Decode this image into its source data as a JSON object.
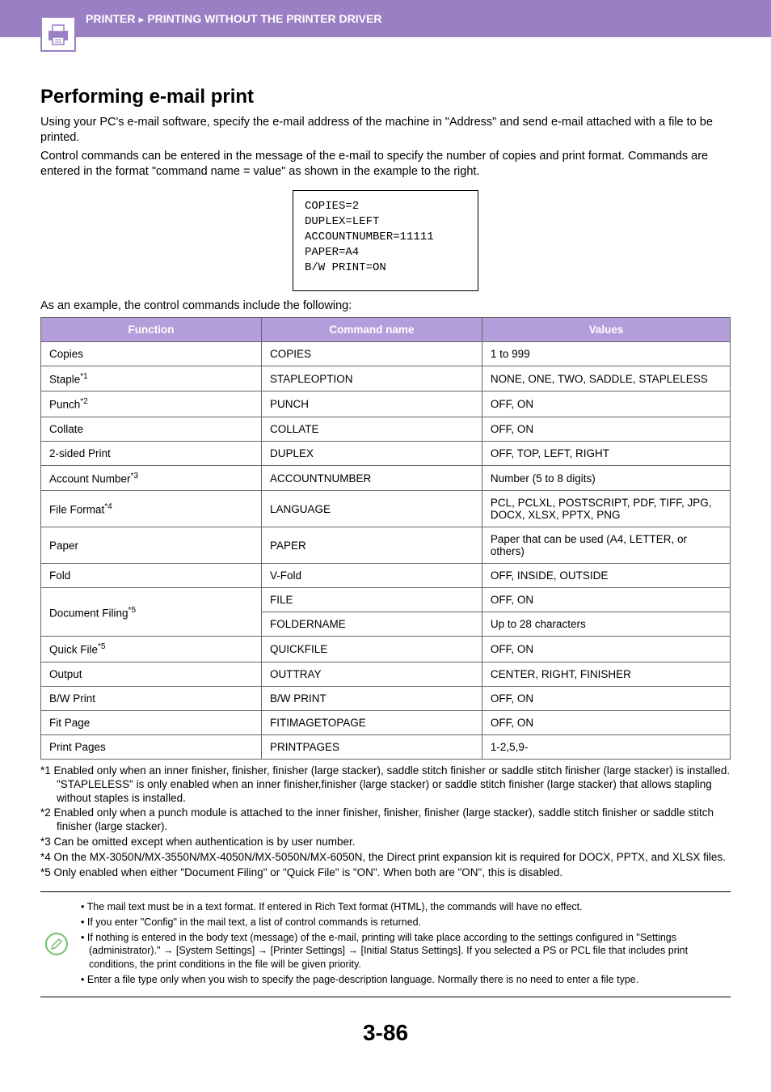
{
  "header": {
    "breadcrumb_1": "PRINTER",
    "breadcrumb_2": "PRINTING WITHOUT THE PRINTER DRIVER",
    "accent_color": "#9b7fc4",
    "text_color": "#ffffff"
  },
  "section": {
    "title": "Performing e-mail print",
    "intro_1": "Using your PC's e-mail software, specify the e-mail address of the machine in \"Address\" and send e-mail attached with a file to be printed.",
    "intro_2": "Control commands can be entered in the message of the e-mail to specify the number of copies and print format. Commands are entered in the format \"command name = value\" as shown in the example to the right."
  },
  "code_example": {
    "lines": [
      "COPIES=2",
      "DUPLEX=LEFT",
      "ACCOUNTNUMBER=11111",
      "PAPER=A4",
      "B/W PRINT=ON"
    ],
    "border_color": "#000000",
    "font_family": "Courier New"
  },
  "table_intro": "As an example, the control commands include the following:",
  "table": {
    "header_bg": "#b39ddb",
    "header_fg": "#ffffff",
    "border_color": "#666666",
    "columns": [
      "Function",
      "Command name",
      "Values"
    ],
    "rows": [
      {
        "func": "Copies",
        "sup": "",
        "cmd": "COPIES",
        "val": "1 to 999",
        "rowspan": 1
      },
      {
        "func": "Staple",
        "sup": "*1",
        "cmd": "STAPLEOPTION",
        "val": "NONE, ONE, TWO, SADDLE, STAPLELESS",
        "rowspan": 1
      },
      {
        "func": "Punch",
        "sup": "*2",
        "cmd": "PUNCH",
        "val": "OFF, ON",
        "rowspan": 1
      },
      {
        "func": "Collate",
        "sup": "",
        "cmd": "COLLATE",
        "val": "OFF, ON",
        "rowspan": 1
      },
      {
        "func": "2-sided Print",
        "sup": "",
        "cmd": "DUPLEX",
        "val": "OFF, TOP, LEFT, RIGHT",
        "rowspan": 1
      },
      {
        "func": "Account Number",
        "sup": "*3",
        "cmd": "ACCOUNTNUMBER",
        "val": "Number (5 to 8 digits)",
        "rowspan": 1
      },
      {
        "func": "File Format",
        "sup": "*4",
        "cmd": "LANGUAGE",
        "val": "PCL, PCLXL, POSTSCRIPT, PDF, TIFF, JPG, DOCX, XLSX, PPTX, PNG",
        "rowspan": 1
      },
      {
        "func": "Paper",
        "sup": "",
        "cmd": "PAPER",
        "val": "Paper that can be used (A4, LETTER, or others)",
        "rowspan": 1
      },
      {
        "func": "Fold",
        "sup": "",
        "cmd": "V-Fold",
        "val": "OFF, INSIDE, OUTSIDE",
        "rowspan": 1
      },
      {
        "func": "Document Filing",
        "sup": "*5",
        "cmd": "FILE",
        "val": "OFF, ON",
        "rowspan": 2
      },
      {
        "func": "",
        "sup": "",
        "cmd": "FOLDERNAME",
        "val": "Up to 28 characters",
        "rowspan": 0
      },
      {
        "func": "Quick File",
        "sup": "*5",
        "cmd": "QUICKFILE",
        "val": "OFF, ON",
        "rowspan": 1
      },
      {
        "func": "Output",
        "sup": "",
        "cmd": "OUTTRAY",
        "val": "CENTER, RIGHT, FINISHER",
        "rowspan": 1
      },
      {
        "func": "B/W Print",
        "sup": "",
        "cmd": "B/W PRINT",
        "val": "OFF, ON",
        "rowspan": 1
      },
      {
        "func": "Fit Page",
        "sup": "",
        "cmd": "FITIMAGETOPAGE",
        "val": "OFF, ON",
        "rowspan": 1
      },
      {
        "func": "Print Pages",
        "sup": "",
        "cmd": "PRINTPAGES",
        "val": "1-2,5,9-",
        "rowspan": 1
      }
    ]
  },
  "footnotes": [
    "*1 Enabled only when an inner finisher, finisher, finisher (large stacker), saddle stitch finisher or saddle stitch finisher (large stacker) is installed. \"STAPLELESS\" is only enabled when an inner finisher,finisher (large stacker) or saddle stitch finisher (large stacker) that allows stapling without staples is installed.",
    "*2 Enabled only when a punch module is attached to the inner finisher, finisher, finisher (large stacker), saddle stitch finisher or saddle stitch finisher (large stacker).",
    "*3 Can be omitted except when authentication is by user number.",
    "*4 On the MX-3050N/MX-3550N/MX-4050N/MX-5050N/MX-6050N, the Direct print expansion kit is required for DOCX, PPTX, and XLSX files.",
    "*5 Only enabled when either \"Document Filing\" or \"Quick File\" is \"ON\". When both are \"ON\", this is disabled."
  ],
  "notes": {
    "icon_color": "#6fbf6f",
    "items": [
      "The mail text must be in a text format. If entered in Rich Text format (HTML), the commands will have no effect.",
      "If you enter \"Config\" in the mail text, a list of control commands is returned.",
      "If nothing is entered in the body text (message) of the e-mail, printing will take place according to the settings configured in \"Settings (administrator).\" → [System Settings] → [Printer Settings] → [Initial Status Settings]. If you selected a PS or PCL file that includes print conditions, the print conditions in the file will be given priority.",
      "Enter a file type only when you wish to specify the page-description language. Normally there is no need to enter a file type."
    ]
  },
  "page_number": "3-86"
}
